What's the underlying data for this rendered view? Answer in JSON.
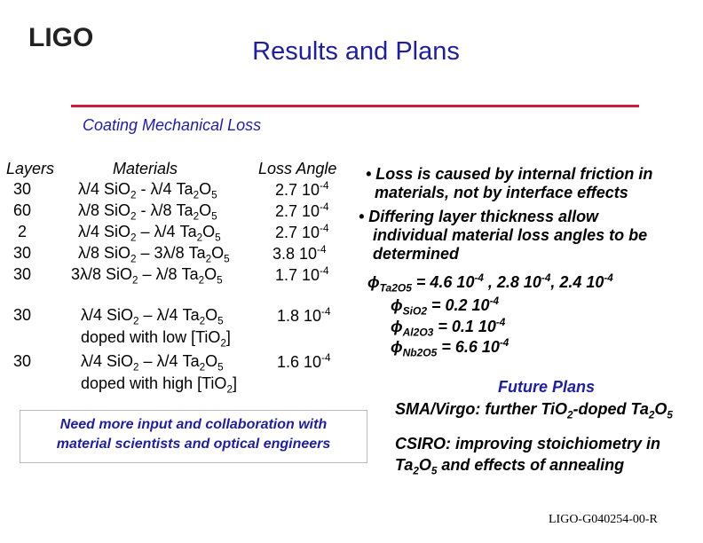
{
  "logo": {
    "text": "LIGO"
  },
  "title": "Results and Plans",
  "subtitle": "Coating Mechanical Loss",
  "table": {
    "headers": {
      "layers": "Layers",
      "materials": "Materials",
      "loss": "Loss Angle"
    },
    "rows": [
      {
        "layers": "30",
        "mat": [
          "λ/4 SiO",
          "2",
          " - λ/4 Ta",
          "2",
          "O",
          "5"
        ],
        "loss": "2.7 10",
        "exp": "-4"
      },
      {
        "layers": "60",
        "mat": [
          "λ/8 SiO",
          "2",
          " - λ/8 Ta",
          "2",
          "O",
          "5"
        ],
        "loss": "2.7 10",
        "exp": "-4"
      },
      {
        "layers": "2",
        "mat": [
          "λ/4 SiO",
          "2",
          " – λ/4 Ta",
          "2",
          "O",
          "5"
        ],
        "loss": "2.7 10",
        "exp": "-4"
      },
      {
        "layers": "30",
        "mat": [
          "λ/8 SiO",
          "2",
          " – 3λ/8 Ta",
          "2",
          "O",
          "5"
        ],
        "loss": "3.8 10",
        "exp": "-4"
      },
      {
        "layers": "30",
        "mat": [
          "3λ/8 SiO",
          "2",
          " – λ/8 Ta",
          "2",
          "O",
          "5"
        ],
        "loss": "1.7 10",
        "exp": "-4"
      }
    ],
    "doped": [
      {
        "layers": "30",
        "mat": [
          "λ/4 SiO",
          "2",
          " – λ/4 Ta",
          "2",
          "O",
          "5"
        ],
        "loss": "1.8 10",
        "exp": "-4",
        "note": [
          "doped with low [TiO",
          "2",
          "]"
        ]
      },
      {
        "layers": "30",
        "mat": [
          "λ/4 SiO",
          "2",
          " – λ/4 Ta",
          "2",
          "O",
          "5"
        ],
        "loss": "1.6 10",
        "exp": "-4",
        "note": [
          "doped with high [TiO",
          "2",
          "]"
        ]
      }
    ]
  },
  "bullets": {
    "b1": [
      "• Loss is caused by internal friction in",
      "materials, not by interface effects"
    ],
    "b2": [
      "• Differing layer thickness allow",
      "individual material loss angles to be",
      "determined"
    ],
    "phi": "ϕ",
    "phi_rows": [
      {
        "sub": "Ta2O5",
        "eq": " =  4.6 10",
        "e1": "-4",
        "mid1": " , 2.8  10",
        "e2": "-4",
        "mid2": ", 2.4 10",
        "e3": "-4"
      },
      {
        "sub": "SiO2",
        "eq": "  =  0.2 10",
        "e1": "-4"
      },
      {
        "sub": "Al2O3",
        "eq": "  =  0.1 10",
        "e1": "-4"
      },
      {
        "sub": "Nb2O5",
        "eq": "  =  6.6 10",
        "e1": "-4"
      }
    ]
  },
  "future": {
    "heading": "Future Plans",
    "sma": [
      "SMA/Virgo: further TiO",
      "2",
      "-doped Ta",
      "2",
      "O",
      "5"
    ],
    "csiro1": "CSIRO: improving stoichiometry in",
    "csiro2": [
      "Ta",
      "2",
      "O",
      "5",
      " and effects of annealing"
    ]
  },
  "callout": [
    "Need more input and collaboration with",
    "material scientists and optical engineers"
  ],
  "footer": "LIGO-G040254-00-R"
}
